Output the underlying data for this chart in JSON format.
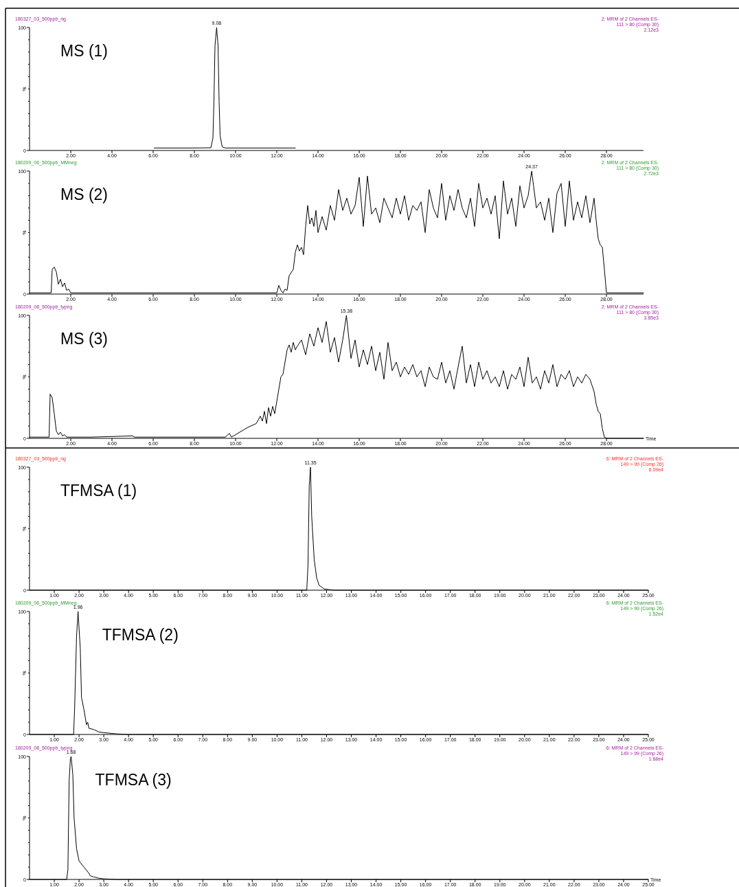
{
  "chart_data": [
    {
      "type": "line",
      "title": "180327_03_500ppb_ng",
      "subtitle": "MS (1)",
      "ylabel": "%",
      "xlim": [
        0,
        29.8
      ],
      "ylim": [
        0,
        100
      ],
      "yticks": [
        {
          "value": 0,
          "label": "0"
        },
        {
          "value": 10,
          "label": null
        },
        {
          "value": 20,
          "label": null
        },
        {
          "value": 30,
          "label": null
        },
        {
          "value": 40,
          "label": null
        },
        {
          "value": 50,
          "label": null
        },
        {
          "value": 60,
          "label": null
        },
        {
          "value": 70,
          "label": null
        },
        {
          "value": 80,
          "label": null
        },
        {
          "value": 90,
          "label": null
        },
        {
          "value": 100,
          "label": "100"
        }
      ],
      "xticks": [
        {
          "value": 2,
          "label": "2.00"
        },
        {
          "value": 4,
          "label": "4.00"
        },
        {
          "value": 6,
          "label": "6.00"
        },
        {
          "value": 8,
          "label": "8.00"
        },
        {
          "value": 10,
          "label": "10.00"
        },
        {
          "value": 12,
          "label": "12.00"
        },
        {
          "value": 14,
          "label": "14.00"
        },
        {
          "value": 16,
          "label": "16.00"
        },
        {
          "value": 18,
          "label": "18.00"
        },
        {
          "value": 20,
          "label": "20.00"
        },
        {
          "value": 22,
          "label": "22.00"
        },
        {
          "value": 24,
          "label": "24.00"
        },
        {
          "value": 26,
          "label": "26.00"
        },
        {
          "value": 28,
          "label": "28.00"
        }
      ],
      "annotations": [
        "2: MRM of 2 Channels ES-",
        "111 > 80 (Comp 30)",
        "2.12e3",
        {
          "text": "9.08",
          "x": 9.08,
          "y": 100
        }
      ],
      "series": [
        {
          "color": "#000000",
          "x": [
            6.05,
            7,
            8,
            8.8,
            8.9,
            8.95,
            9.0,
            9.08,
            9.15,
            9.2,
            9.25,
            9.35,
            9.5,
            10,
            11,
            12,
            12.9
          ],
          "values": [
            2,
            2,
            2,
            2.2,
            10,
            40,
            85,
            100,
            85,
            40,
            12,
            3,
            2,
            2,
            2,
            2,
            2
          ]
        }
      ]
    },
    {
      "type": "line",
      "title": "180209_06_500ppb_MMneg",
      "subtitle": "MS (2)",
      "ylabel": "%",
      "xlim": [
        0,
        29.8
      ],
      "ylim": [
        0,
        100
      ],
      "yticks": [
        {
          "value": 0,
          "label": "0"
        },
        {
          "value": 10,
          "label": null
        },
        {
          "value": 20,
          "label": null
        },
        {
          "value": 30,
          "label": null
        },
        {
          "value": 40,
          "label": null
        },
        {
          "value": 50,
          "label": null
        },
        {
          "value": 60,
          "label": null
        },
        {
          "value": 70,
          "label": null
        },
        {
          "value": 80,
          "label": null
        },
        {
          "value": 90,
          "label": null
        },
        {
          "value": 100,
          "label": "100"
        }
      ],
      "xticks": [
        {
          "value": 2,
          "label": "2.00"
        },
        {
          "value": 4,
          "label": "4.00"
        },
        {
          "value": 6,
          "label": "6.00"
        },
        {
          "value": 8,
          "label": "8.00"
        },
        {
          "value": 10,
          "label": "10.00"
        },
        {
          "value": 12,
          "label": "12.00"
        },
        {
          "value": 14,
          "label": "14.00"
        },
        {
          "value": 16,
          "label": "16.00"
        },
        {
          "value": 18,
          "label": "18.00"
        },
        {
          "value": 20,
          "label": "20.00"
        },
        {
          "value": 22,
          "label": "22.00"
        },
        {
          "value": 24,
          "label": "24.00"
        },
        {
          "value": 26,
          "label": "26.00"
        },
        {
          "value": 28,
          "label": "28.00"
        }
      ],
      "annotations": [
        "2: MRM of 2 Channels ES-",
        "111 > 80 (Comp 30)",
        "2.72e3",
        {
          "text": "24.37",
          "x": 24.37,
          "y": 100
        }
      ],
      "series": [
        {
          "color": "#000000",
          "x": [
            0,
            1.0,
            1.05,
            1.1,
            1.2,
            1.3,
            1.4,
            1.5,
            1.6,
            1.7,
            1.8,
            1.9,
            2.0,
            4,
            6,
            8,
            10,
            11.8,
            12.0,
            12.1,
            12.2,
            12.3,
            12.4,
            12.5,
            12.6,
            12.8,
            12.9,
            13.0,
            13.1,
            13.2,
            13.3,
            13.4,
            13.5,
            13.6,
            13.7,
            13.8,
            13.9,
            14.0,
            14.2,
            14.4,
            14.6,
            14.8,
            15.0,
            15.2,
            15.4,
            15.6,
            15.8,
            16.0,
            16.2,
            16.4,
            16.6,
            16.8,
            17.0,
            17.2,
            17.4,
            17.6,
            17.8,
            18.0,
            18.2,
            18.4,
            18.6,
            18.8,
            19.0,
            19.2,
            19.4,
            19.6,
            19.8,
            20.0,
            20.2,
            20.4,
            20.6,
            20.8,
            21.0,
            21.2,
            21.4,
            21.6,
            21.8,
            22.0,
            22.2,
            22.4,
            22.6,
            22.8,
            23.0,
            23.2,
            23.4,
            23.6,
            23.8,
            24.0,
            24.2,
            24.37,
            24.6,
            24.8,
            25.0,
            25.2,
            25.4,
            25.6,
            25.8,
            26.0,
            26.2,
            26.4,
            26.6,
            26.8,
            27.0,
            27.2,
            27.4,
            27.5,
            27.6,
            27.7,
            27.8,
            27.9,
            28.0,
            28.2,
            29.8
          ],
          "values": [
            1,
            1,
            1,
            20,
            22,
            18,
            8,
            12,
            6,
            9,
            3,
            4,
            1,
            1,
            1,
            1,
            1,
            1,
            1,
            7,
            3,
            1,
            4,
            3,
            15,
            20,
            34,
            40,
            35,
            38,
            32,
            55,
            72,
            57,
            62,
            55,
            68,
            50,
            63,
            52,
            72,
            60,
            85,
            68,
            78,
            65,
            72,
            95,
            55,
            96,
            65,
            70,
            58,
            78,
            70,
            62,
            78,
            65,
            80,
            60,
            72,
            68,
            75,
            50,
            85,
            70,
            62,
            90,
            60,
            80,
            68,
            85,
            70,
            62,
            78,
            55,
            90,
            70,
            78,
            65,
            80,
            45,
            92,
            65,
            78,
            55,
            88,
            70,
            80,
            100,
            70,
            75,
            60,
            78,
            50,
            82,
            90,
            55,
            92,
            60,
            75,
            62,
            80,
            58,
            78,
            60,
            45,
            40,
            38,
            20,
            1,
            1,
            1
          ]
        }
      ]
    },
    {
      "type": "line",
      "title": "180209_08_500ppb_typng",
      "subtitle": "MS (3)",
      "xlabel": "Time",
      "ylabel": "%",
      "xlim": [
        0,
        29.8
      ],
      "ylim": [
        0,
        100
      ],
      "yticks": [
        {
          "value": 0,
          "label": "0"
        },
        {
          "value": 10,
          "label": null
        },
        {
          "value": 20,
          "label": null
        },
        {
          "value": 30,
          "label": null
        },
        {
          "value": 40,
          "label": null
        },
        {
          "value": 50,
          "label": null
        },
        {
          "value": 60,
          "label": null
        },
        {
          "value": 70,
          "label": null
        },
        {
          "value": 80,
          "label": null
        },
        {
          "value": 90,
          "label": null
        },
        {
          "value": 100,
          "label": "100"
        }
      ],
      "xticks": [
        {
          "value": 2,
          "label": "2.00"
        },
        {
          "value": 4,
          "label": "4.00"
        },
        {
          "value": 6,
          "label": "6.00"
        },
        {
          "value": 8,
          "label": "8.00"
        },
        {
          "value": 10,
          "label": "10.00"
        },
        {
          "value": 12,
          "label": "12.00"
        },
        {
          "value": 14,
          "label": "14.00"
        },
        {
          "value": 16,
          "label": "16.00"
        },
        {
          "value": 18,
          "label": "18.00"
        },
        {
          "value": 20,
          "label": "20.00"
        },
        {
          "value": 22,
          "label": "22.00"
        },
        {
          "value": 24,
          "label": "24.00"
        },
        {
          "value": 26,
          "label": "26.00"
        },
        {
          "value": 28,
          "label": "28.00"
        }
      ],
      "annotations": [
        "2: MRM of 2 Channels ES-",
        "111 > 80 (Comp 30)",
        "3.85e3",
        {
          "text": "15.38",
          "x": 15.38,
          "y": 100
        }
      ],
      "series": [
        {
          "color": "#000000",
          "x": [
            0,
            0.95,
            1.0,
            1.1,
            1.2,
            1.3,
            1.4,
            1.5,
            1.6,
            1.7,
            1.8,
            3,
            5.0,
            5.1,
            7,
            9.5,
            9.7,
            9.8,
            10.0,
            10.3,
            10.6,
            11.0,
            11.2,
            11.3,
            11.4,
            11.5,
            11.6,
            11.7,
            11.8,
            11.9,
            12.0,
            12.2,
            12.3,
            12.5,
            12.6,
            12.7,
            12.8,
            12.9,
            13.0,
            13.2,
            13.4,
            13.6,
            13.8,
            14.0,
            14.2,
            14.4,
            14.6,
            14.8,
            15.0,
            15.2,
            15.38,
            15.6,
            15.8,
            16.0,
            16.2,
            16.4,
            16.6,
            16.8,
            17.0,
            17.2,
            17.4,
            17.6,
            17.8,
            18.0,
            18.2,
            18.4,
            18.6,
            18.8,
            19.0,
            19.2,
            19.4,
            19.6,
            19.8,
            20.0,
            20.2,
            20.4,
            20.6,
            20.8,
            21.0,
            21.2,
            21.4,
            21.6,
            21.8,
            22.0,
            22.2,
            22.4,
            22.6,
            22.8,
            23.0,
            23.2,
            23.4,
            23.6,
            23.8,
            24.0,
            24.2,
            24.4,
            24.6,
            24.8,
            25.0,
            25.2,
            25.4,
            25.6,
            25.8,
            26.0,
            26.2,
            26.4,
            26.6,
            26.8,
            27.0,
            27.2,
            27.4,
            27.5,
            27.6,
            27.7,
            27.8,
            27.9,
            28.0,
            29.8
          ],
          "values": [
            1,
            1,
            36,
            33,
            20,
            6,
            3,
            5,
            2,
            3,
            1,
            1,
            2,
            1,
            1,
            1,
            4,
            1,
            3,
            6,
            9,
            12,
            18,
            14,
            22,
            12,
            25,
            18,
            26,
            20,
            30,
            50,
            52,
            72,
            76,
            70,
            78,
            72,
            75,
            80,
            68,
            85,
            75,
            90,
            78,
            95,
            70,
            82,
            62,
            80,
            100,
            65,
            80,
            58,
            72,
            60,
            75,
            55,
            70,
            48,
            78,
            55,
            62,
            50,
            58,
            52,
            60,
            50,
            55,
            42,
            58,
            50,
            48,
            62,
            45,
            55,
            40,
            58,
            75,
            45,
            60,
            42,
            62,
            48,
            55,
            45,
            50,
            42,
            55,
            40,
            52,
            48,
            58,
            42,
            66,
            45,
            50,
            40,
            55,
            45,
            60,
            42,
            52,
            48,
            55,
            42,
            50,
            45,
            52,
            48,
            38,
            28,
            22,
            20,
            8,
            1,
            0,
            0
          ]
        }
      ]
    },
    {
      "type": "line",
      "title": "180327_03_500ppb_ng",
      "subtitle": "TFMSA (1)",
      "ylabel": "%",
      "xlim": [
        0,
        25
      ],
      "ylim": [
        0,
        100
      ],
      "yticks": [
        {
          "value": 0,
          "label": "0"
        },
        {
          "value": 10,
          "label": null
        },
        {
          "value": 20,
          "label": null
        },
        {
          "value": 30,
          "label": null
        },
        {
          "value": 40,
          "label": null
        },
        {
          "value": 50,
          "label": null
        },
        {
          "value": 60,
          "label": null
        },
        {
          "value": 70,
          "label": null
        },
        {
          "value": 80,
          "label": null
        },
        {
          "value": 90,
          "label": null
        },
        {
          "value": 100,
          "label": "100"
        }
      ],
      "xticks": [
        {
          "value": 1,
          "label": "1.00"
        },
        {
          "value": 2,
          "label": "2.00"
        },
        {
          "value": 3,
          "label": "3.00"
        },
        {
          "value": 4,
          "label": "4.00"
        },
        {
          "value": 5,
          "label": "5.00"
        },
        {
          "value": 6,
          "label": "6.00"
        },
        {
          "value": 7,
          "label": "7.00"
        },
        {
          "value": 8,
          "label": "8.00"
        },
        {
          "value": 9,
          "label": "9.00"
        },
        {
          "value": 10,
          "label": "10.00"
        },
        {
          "value": 11,
          "label": "11.00"
        },
        {
          "value": 12,
          "label": "12.00"
        },
        {
          "value": 13,
          "label": "13.00"
        },
        {
          "value": 14,
          "label": "14.00"
        },
        {
          "value": 15,
          "label": "15.00"
        },
        {
          "value": 16,
          "label": "16.00"
        },
        {
          "value": 17,
          "label": "17.00"
        },
        {
          "value": 18,
          "label": "18.00"
        },
        {
          "value": 19,
          "label": "19.00"
        },
        {
          "value": 20,
          "label": "20.00"
        },
        {
          "value": 21,
          "label": "21.00"
        },
        {
          "value": 22,
          "label": "22.00"
        },
        {
          "value": 23,
          "label": "23.00"
        },
        {
          "value": 24,
          "label": "24.00"
        },
        {
          "value": 25,
          "label": "25.00"
        }
      ],
      "annotations": [
        "6: MRM of 2 Channels ES-",
        "149 > 99 (Comp 26)",
        "6.09e4",
        {
          "text": "11.35",
          "x": 11.35,
          "y": 100
        }
      ],
      "series": [
        {
          "color": "#000000",
          "x": [
            0,
            11.2,
            11.25,
            11.3,
            11.35,
            11.4,
            11.5,
            11.6,
            11.7,
            11.9,
            12.3,
            25
          ],
          "values": [
            0,
            0,
            20,
            85,
            100,
            60,
            25,
            10,
            4,
            1,
            0,
            0
          ]
        }
      ]
    },
    {
      "type": "line",
      "title": "180209_06_500ppb_MMneg",
      "subtitle": "TFMSA (2)",
      "ylabel": "%",
      "xlim": [
        0,
        25
      ],
      "ylim": [
        0,
        100
      ],
      "yticks": [
        {
          "value": 0,
          "label": "0"
        },
        {
          "value": 10,
          "label": null
        },
        {
          "value": 20,
          "label": null
        },
        {
          "value": 30,
          "label": null
        },
        {
          "value": 40,
          "label": null
        },
        {
          "value": 50,
          "label": null
        },
        {
          "value": 60,
          "label": null
        },
        {
          "value": 70,
          "label": null
        },
        {
          "value": 80,
          "label": null
        },
        {
          "value": 90,
          "label": null
        },
        {
          "value": 100,
          "label": "100"
        }
      ],
      "xticks": [
        {
          "value": 1,
          "label": "1.00"
        },
        {
          "value": 2,
          "label": "2.00"
        },
        {
          "value": 3,
          "label": "3.00"
        },
        {
          "value": 4,
          "label": "4.00"
        },
        {
          "value": 5,
          "label": "5.00"
        },
        {
          "value": 6,
          "label": "6.00"
        },
        {
          "value": 7,
          "label": "7.00"
        },
        {
          "value": 8,
          "label": "8.00"
        },
        {
          "value": 9,
          "label": "9.00"
        },
        {
          "value": 10,
          "label": "10.00"
        },
        {
          "value": 11,
          "label": "11.00"
        },
        {
          "value": 12,
          "label": "12.00"
        },
        {
          "value": 13,
          "label": "13.00"
        },
        {
          "value": 14,
          "label": "14.00"
        },
        {
          "value": 15,
          "label": "15.00"
        },
        {
          "value": 16,
          "label": "16.00"
        },
        {
          "value": 17,
          "label": "17.00"
        },
        {
          "value": 18,
          "label": "18.00"
        },
        {
          "value": 19,
          "label": "19.00"
        },
        {
          "value": 20,
          "label": "20.00"
        },
        {
          "value": 21,
          "label": "21.00"
        },
        {
          "value": 22,
          "label": "22.00"
        },
        {
          "value": 23,
          "label": "23.00"
        },
        {
          "value": 24,
          "label": "24.00"
        },
        {
          "value": 25,
          "label": "25.00"
        }
      ],
      "annotations": [
        "6: MRM of 2 Channels ES-",
        "149 > 99 (Comp 26)",
        "1.52e4",
        {
          "text": "1.96",
          "x": 1.96,
          "y": 100
        }
      ],
      "series": [
        {
          "color": "#000000",
          "x": [
            0,
            1.78,
            1.82,
            1.9,
            1.96,
            2.05,
            2.1,
            2.2,
            2.3,
            2.35,
            2.4,
            2.6,
            2.8,
            3.0,
            3.5,
            4,
            25
          ],
          "values": [
            0,
            0,
            20,
            80,
            100,
            70,
            30,
            20,
            8,
            10,
            5,
            4,
            2,
            1.5,
            0.5,
            0,
            0
          ]
        }
      ]
    },
    {
      "type": "line",
      "title": "180209_08_500ppb_typng",
      "subtitle": "TFMSA (3)",
      "xlabel": "Time",
      "ylabel": "%",
      "xlim": [
        0,
        25
      ],
      "ylim": [
        0,
        100
      ],
      "yticks": [
        {
          "value": 0,
          "label": "0"
        },
        {
          "value": 10,
          "label": null
        },
        {
          "value": 20,
          "label": null
        },
        {
          "value": 30,
          "label": null
        },
        {
          "value": 40,
          "label": null
        },
        {
          "value": 50,
          "label": null
        },
        {
          "value": 60,
          "label": null
        },
        {
          "value": 70,
          "label": null
        },
        {
          "value": 80,
          "label": null
        },
        {
          "value": 90,
          "label": null
        },
        {
          "value": 100,
          "label": "100"
        }
      ],
      "xticks": [
        {
          "value": 1,
          "label": "1.00"
        },
        {
          "value": 2,
          "label": "2.00"
        },
        {
          "value": 3,
          "label": "3.00"
        },
        {
          "value": 4,
          "label": "4.00"
        },
        {
          "value": 5,
          "label": "5.00"
        },
        {
          "value": 6,
          "label": "6.00"
        },
        {
          "value": 7,
          "label": "7.00"
        },
        {
          "value": 8,
          "label": "8.00"
        },
        {
          "value": 9,
          "label": "9.00"
        },
        {
          "value": 10,
          "label": "10.00"
        },
        {
          "value": 11,
          "label": "11.00"
        },
        {
          "value": 12,
          "label": "12.00"
        },
        {
          "value": 13,
          "label": "13.00"
        },
        {
          "value": 14,
          "label": "14.00"
        },
        {
          "value": 15,
          "label": "15.00"
        },
        {
          "value": 16,
          "label": "16.00"
        },
        {
          "value": 17,
          "label": "17.00"
        },
        {
          "value": 18,
          "label": "18.00"
        },
        {
          "value": 19,
          "label": "19.00"
        },
        {
          "value": 20,
          "label": "20.00"
        },
        {
          "value": 21,
          "label": "21.00"
        },
        {
          "value": 22,
          "label": "22.00"
        },
        {
          "value": 23,
          "label": "23.00"
        },
        {
          "value": 24,
          "label": "24.00"
        },
        {
          "value": 25,
          "label": "25.00"
        }
      ],
      "annotations": [
        "6: MRM of 2 Channels ES-",
        "149 > 99 (Comp 26)",
        "1.68e4",
        {
          "text": "1.68",
          "x": 1.68,
          "y": 100
        }
      ],
      "series": [
        {
          "color": "#000000",
          "x": [
            0,
            1.5,
            1.55,
            1.6,
            1.65,
            1.68,
            1.75,
            1.8,
            1.9,
            2.0,
            2.2,
            2.4,
            2.45,
            2.6,
            2.8,
            3.0,
            3.5,
            25
          ],
          "values": [
            0,
            0,
            8,
            80,
            98,
            100,
            85,
            50,
            25,
            15,
            10,
            5,
            3,
            2,
            1,
            0.5,
            0,
            0
          ]
        }
      ]
    }
  ]
}
